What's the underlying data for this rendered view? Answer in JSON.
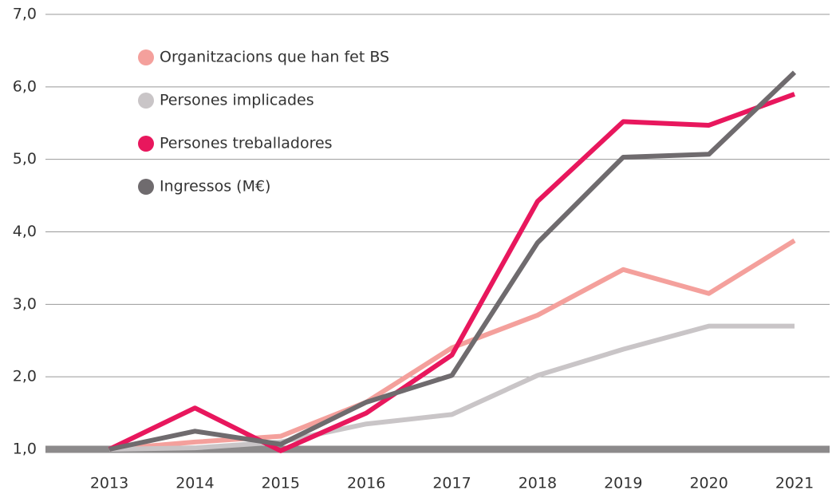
{
  "chart_data": {
    "type": "line",
    "x": [
      "2013",
      "2014",
      "2015",
      "2016",
      "2017",
      "2018",
      "2019",
      "2020",
      "2021"
    ],
    "series": [
      {
        "name": "Organitzacions que han fet BS",
        "color": "#f4a09c",
        "values": [
          1.0,
          1.1,
          1.18,
          1.65,
          2.4,
          2.85,
          3.48,
          3.15,
          3.88
        ]
      },
      {
        "name": "Persones implicades",
        "color": "#c9c5c7",
        "values": [
          1.0,
          1.02,
          1.1,
          1.35,
          1.48,
          2.02,
          2.38,
          2.7,
          2.7
        ]
      },
      {
        "name": "Persones treballadores",
        "color": "#e8175d",
        "values": [
          1.0,
          1.57,
          0.98,
          1.5,
          2.3,
          4.42,
          5.52,
          5.47,
          5.9
        ]
      },
      {
        "name": "Ingressos (M€)",
        "color": "#6f6b6e",
        "values": [
          1.0,
          1.25,
          1.07,
          1.65,
          2.02,
          3.85,
          5.03,
          5.07,
          6.2
        ]
      }
    ],
    "ylim": [
      1,
      7
    ],
    "yticks": [
      {
        "value": 1,
        "label": "1,0"
      },
      {
        "value": 2,
        "label": "2,0"
      },
      {
        "value": 3,
        "label": "3,0"
      },
      {
        "value": 4,
        "label": "4,0"
      },
      {
        "value": 5,
        "label": "5,0"
      },
      {
        "value": 6,
        "label": "6,0"
      },
      {
        "value": 7,
        "label": "7,0"
      }
    ],
    "grid": true,
    "legend": "top-left"
  }
}
